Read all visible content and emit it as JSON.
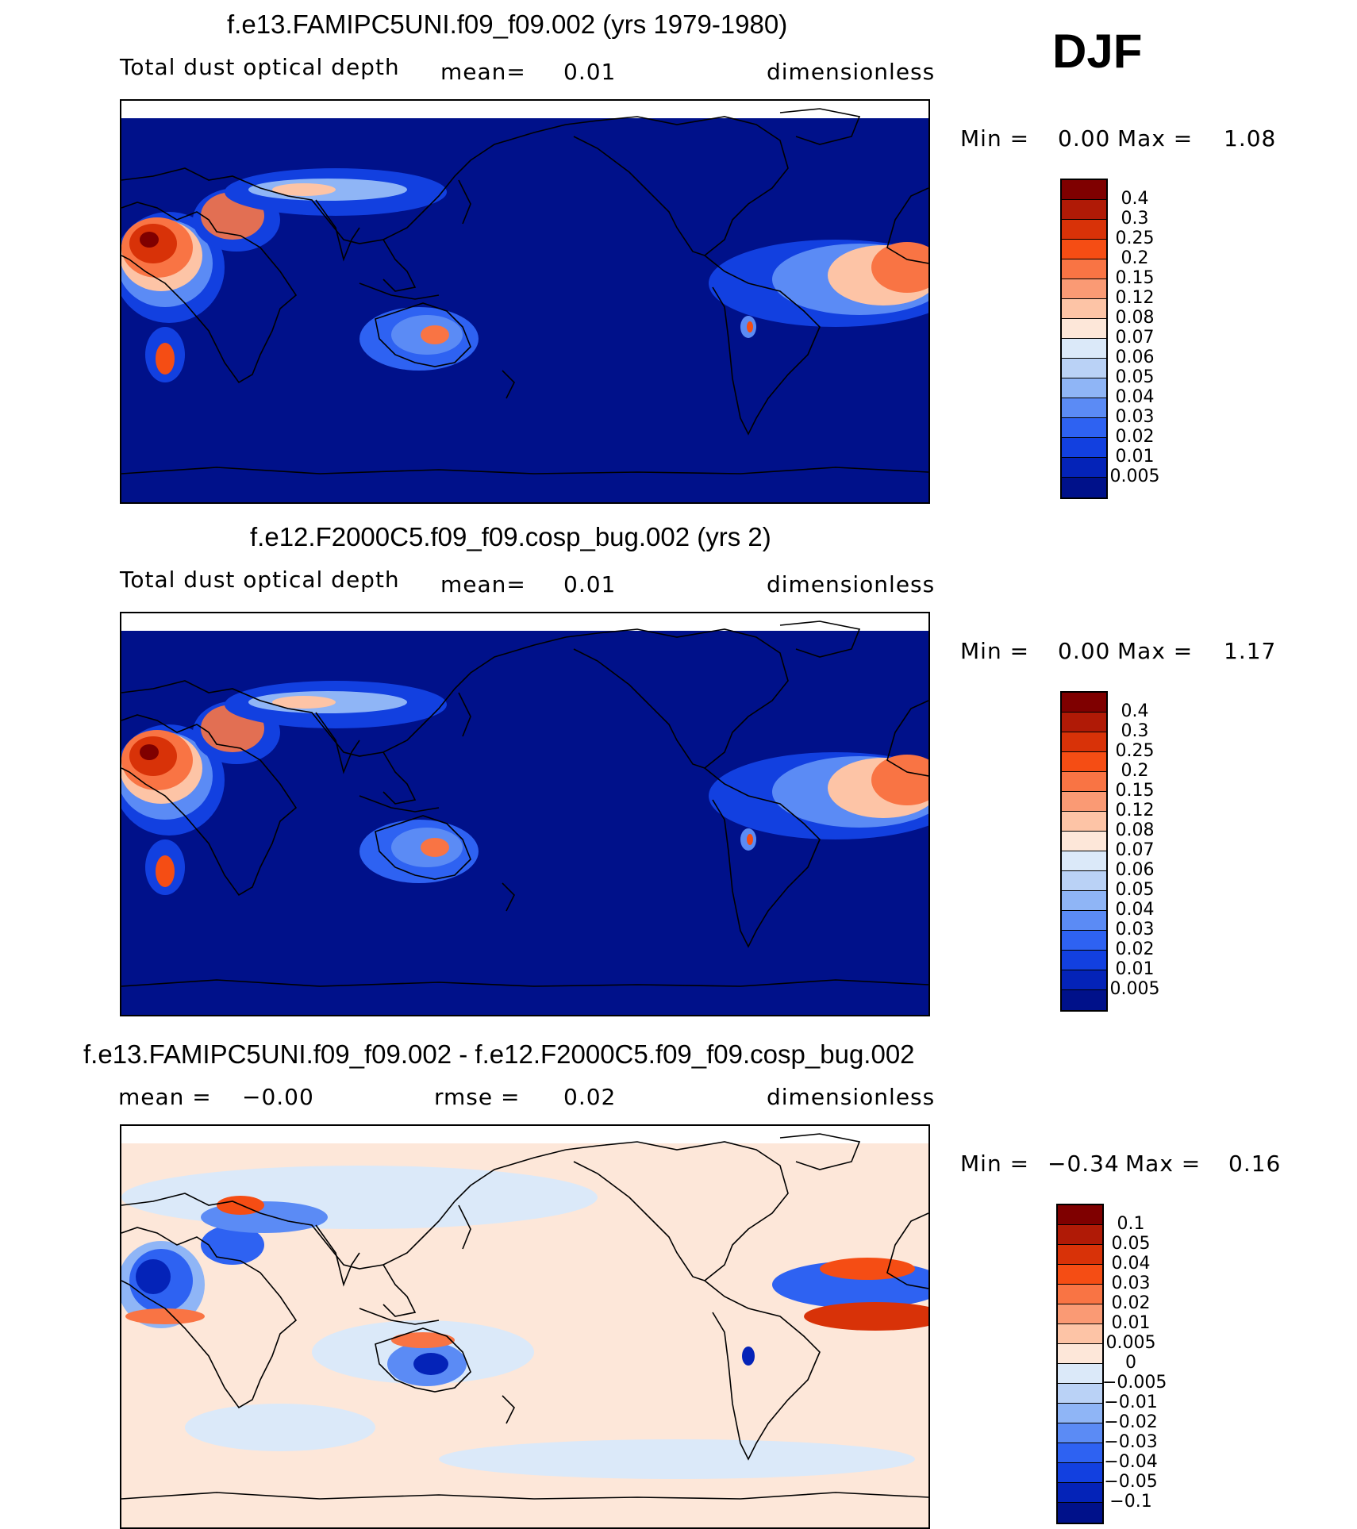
{
  "season": "DJF",
  "panels": [
    {
      "title": "f.e13.FAMIPC5UNI.f09_f09.002 (yrs 1979-1980)",
      "variable": "Total dust optical depth",
      "stat_label": "mean=",
      "stat_value": "0.01",
      "units": "dimensionless",
      "min_label": "Min =",
      "min_value": "0.00",
      "max_label": "Max =",
      "max_value": "1.08",
      "colorbar": {
        "labels": [
          "0.4",
          "0.3",
          "0.25",
          "0.2",
          "0.15",
          "0.12",
          "0.08",
          "0.07",
          "0.06",
          "0.05",
          "0.04",
          "0.03",
          "0.02",
          "0.01",
          "0.005"
        ],
        "colors": [
          "#7f0000",
          "#b01a06",
          "#d83208",
          "#f54d14",
          "#f97444",
          "#fa9a74",
          "#fdc4a6",
          "#fde7d9",
          "#dbe9f9",
          "#bad2f6",
          "#8fb5f6",
          "#5b8bf5",
          "#2e62f2",
          "#1240e0",
          "#0423b8",
          "#00118a"
        ]
      },
      "field": "dust"
    },
    {
      "title": "f.e12.F2000C5.f09_f09.cosp_bug.002 (yrs 2)",
      "variable": "Total dust optical depth",
      "stat_label": "mean=",
      "stat_value": "0.01",
      "units": "dimensionless",
      "min_label": "Min =",
      "min_value": "0.00",
      "max_label": "Max =",
      "max_value": "1.17",
      "colorbar": {
        "labels": [
          "0.4",
          "0.3",
          "0.25",
          "0.2",
          "0.15",
          "0.12",
          "0.08",
          "0.07",
          "0.06",
          "0.05",
          "0.04",
          "0.03",
          "0.02",
          "0.01",
          "0.005"
        ],
        "colors": [
          "#7f0000",
          "#b01a06",
          "#d83208",
          "#f54d14",
          "#f97444",
          "#fa9a74",
          "#fdc4a6",
          "#fde7d9",
          "#dbe9f9",
          "#bad2f6",
          "#8fb5f6",
          "#5b8bf5",
          "#2e62f2",
          "#1240e0",
          "#0423b8",
          "#00118a"
        ]
      },
      "field": "dust"
    },
    {
      "title": "f.e13.FAMIPC5UNI.f09_f09.002 - f.e12.F2000C5.f09_f09.cosp_bug.002",
      "mean_label": "mean =",
      "mean_value": "−0.00",
      "stat_label": "rmse =",
      "stat_value": "0.02",
      "units": "dimensionless",
      "min_label": "Min =",
      "min_value": "−0.34",
      "max_label": "Max =",
      "max_value": "0.16",
      "colorbar": {
        "labels": [
          "0.1",
          "0.05",
          "0.04",
          "0.03",
          "0.02",
          "0.01",
          "0.005",
          "0",
          "−0.005",
          "−0.01",
          "−0.02",
          "−0.03",
          "−0.04",
          "−0.05",
          "−0.1"
        ],
        "colors": [
          "#7f0000",
          "#b01a06",
          "#d83208",
          "#f54d14",
          "#f97444",
          "#fa9a74",
          "#fdc4a6",
          "#fde7d9",
          "#dbe9f9",
          "#bad2f6",
          "#8fb5f6",
          "#5b8bf5",
          "#2e62f2",
          "#1240e0",
          "#0423b8",
          "#00118a"
        ]
      },
      "field": "diff"
    }
  ]
}
